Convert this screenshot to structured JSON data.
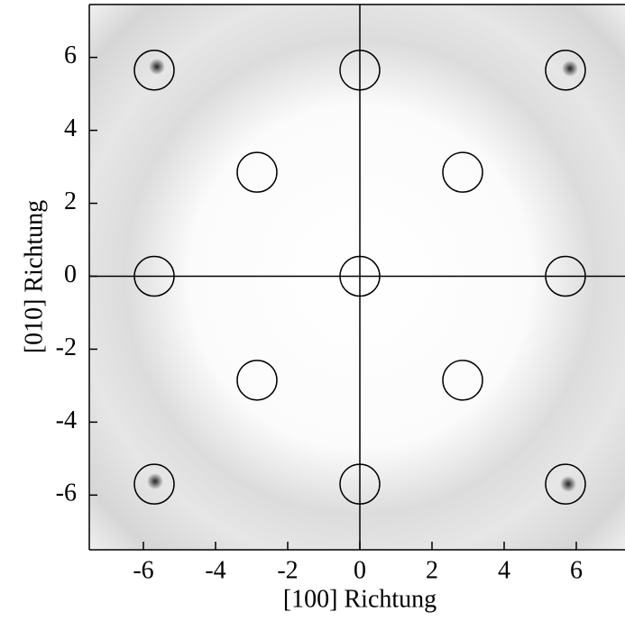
{
  "chart_data": {
    "type": "scatter",
    "x_label": "[100] Richtung",
    "y_label": "[010] Richtung",
    "x": [
      -5.7,
      0,
      5.7,
      -2.85,
      2.85,
      -5.7,
      0,
      5.7,
      -2.85,
      2.85,
      -5.7,
      0,
      5.7
    ],
    "y": [
      5.65,
      5.65,
      5.65,
      2.85,
      2.85,
      0,
      0,
      0,
      -2.85,
      -2.85,
      -5.7,
      -5.7,
      -5.7
    ],
    "color": "#000000",
    "xlim": [
      -7.5,
      7.35
    ],
    "ylim": [
      -7.5,
      7.45
    ],
    "xticks": [
      -6,
      -4,
      -2,
      0,
      2,
      4,
      6
    ],
    "yticks": [
      -6,
      -4,
      -2,
      0,
      2,
      4,
      6
    ]
  }
}
